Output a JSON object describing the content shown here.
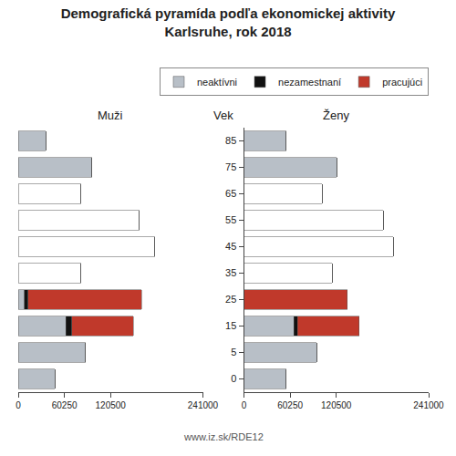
{
  "title": "Demografická pyramída podľa ekonomickej aktivity\nKarlsruhe, rok 2018",
  "annotations": [
    "www.iz.sk/RDE12"
  ],
  "chart_data": [
    {
      "type": "bar",
      "orientation": "horizontal",
      "stacked": true,
      "title": "Muži",
      "categories": [
        "0",
        "5",
        "15",
        "25",
        "35",
        "45",
        "55",
        "65",
        "75",
        "85"
      ],
      "xlim": [
        0,
        241000
      ],
      "xticks": [
        0,
        60250,
        120500,
        241000
      ],
      "grid": false,
      "tick_labels": "x",
      "series": [
        {
          "name": "neaktívni",
          "colors": [
            "#b8bfc7",
            "#b8bfc7",
            "#b8bfc7",
            "#b8bfc7",
            "#ffffff",
            "#ffffff",
            "#ffffff",
            "#ffffff",
            "#b8bfc7",
            "#b8bfc7"
          ],
          "values": [
            48000,
            88000,
            62000,
            8000,
            82000,
            178000,
            158000,
            82000,
            96000,
            36000
          ]
        },
        {
          "name": "nezamestnaní",
          "color": "#111111",
          "values": [
            0,
            0,
            8000,
            5000,
            0,
            0,
            0,
            0,
            0,
            0
          ]
        },
        {
          "name": "pracujúci",
          "color": "#c0392b",
          "values": [
            0,
            0,
            80000,
            148000,
            0,
            0,
            0,
            0,
            0,
            0
          ]
        }
      ]
    },
    {
      "type": "bar",
      "orientation": "horizontal",
      "stacked": true,
      "title": "Ženy",
      "ylabel": "Vek",
      "categories": [
        "0",
        "5",
        "15",
        "25",
        "35",
        "45",
        "55",
        "65",
        "75",
        "85"
      ],
      "xlim": [
        0,
        241000
      ],
      "xticks": [
        0,
        60250,
        120500,
        241000
      ],
      "grid": false,
      "legend": "upper right",
      "series": [
        {
          "name": "neaktívni",
          "colors": [
            "#b8bfc7",
            "#b8bfc7",
            "#b8bfc7",
            "#b8bfc7",
            "#ffffff",
            "#ffffff",
            "#ffffff",
            "#ffffff",
            "#b8bfc7",
            "#b8bfc7"
          ],
          "values": [
            55000,
            95000,
            65000,
            0,
            115000,
            195000,
            182000,
            102000,
            121000,
            55000
          ]
        },
        {
          "name": "nezamestnaní",
          "color": "#111111",
          "values": [
            0,
            0,
            5000,
            0,
            0,
            0,
            0,
            0,
            0,
            0
          ]
        },
        {
          "name": "pracujúci",
          "color": "#c0392b",
          "values": [
            0,
            0,
            80000,
            135000,
            0,
            0,
            0,
            0,
            0,
            0
          ]
        }
      ]
    }
  ]
}
